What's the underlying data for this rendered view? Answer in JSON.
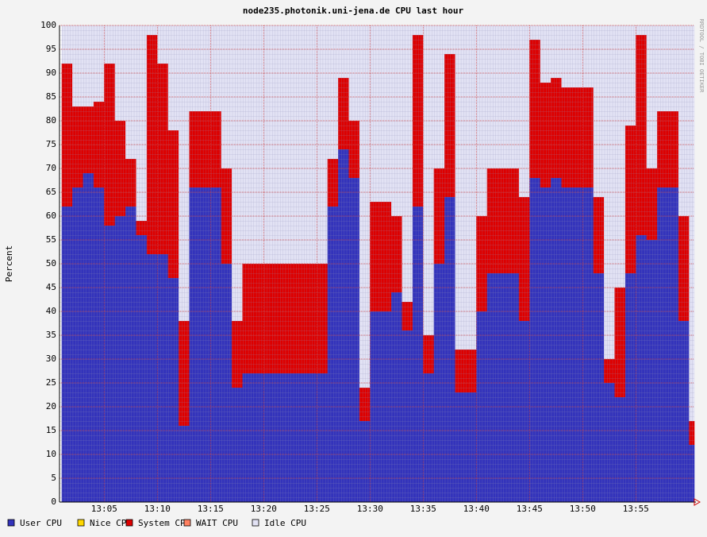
{
  "chart_data": {
    "type": "stacked-step-area",
    "title": "node235.photonik.uni-jena.de CPU last hour",
    "y_label": "Percent",
    "watermark": "RRDTOOL / TOBI OETIKER",
    "x": [
      1,
      2,
      3,
      4,
      5,
      6,
      7,
      8,
      9,
      10,
      11,
      12,
      13,
      14,
      15,
      16,
      17,
      18,
      19,
      20,
      21,
      22,
      23,
      24,
      25,
      26,
      27,
      28,
      29,
      30,
      31,
      32,
      33,
      34,
      35,
      36,
      37,
      38,
      39,
      40,
      41,
      42,
      43,
      44,
      45,
      46,
      47,
      48,
      49,
      50,
      51,
      52,
      53,
      54,
      55,
      56,
      57,
      58,
      59,
      60
    ],
    "xlim": [
      0.8,
      60.5
    ],
    "xticks": [
      {
        "value": 5,
        "label": "13:05"
      },
      {
        "value": 10,
        "label": "13:10"
      },
      {
        "value": 15,
        "label": "13:15"
      },
      {
        "value": 20,
        "label": "13:20"
      },
      {
        "value": 25,
        "label": "13:25"
      },
      {
        "value": 30,
        "label": "13:30"
      },
      {
        "value": 35,
        "label": "13:35"
      },
      {
        "value": 40,
        "label": "13:40"
      },
      {
        "value": 45,
        "label": "13:45"
      },
      {
        "value": 50,
        "label": "13:50"
      },
      {
        "value": 55,
        "label": "13:55"
      }
    ],
    "ylim": [
      0,
      100
    ],
    "yticks": [
      0,
      5,
      10,
      15,
      20,
      25,
      30,
      35,
      40,
      45,
      50,
      55,
      60,
      65,
      70,
      75,
      80,
      85,
      90,
      95,
      100
    ],
    "grid": true,
    "series": [
      {
        "name": "User CPU",
        "color": "#3333bb",
        "values": [
          62,
          66,
          69,
          66,
          58,
          60,
          62,
          56,
          52,
          52,
          47,
          16,
          66,
          66,
          66,
          50,
          24,
          27,
          27,
          27,
          27,
          27,
          27,
          27,
          27,
          62,
          74,
          68,
          17,
          40,
          40,
          44,
          36,
          62,
          27,
          50,
          64,
          23,
          23,
          40,
          48,
          48,
          48,
          38,
          68,
          66,
          68,
          66,
          66,
          66,
          48,
          25,
          22,
          48,
          56,
          55,
          66,
          66,
          38,
          12
        ]
      },
      {
        "name": "Nice CPU",
        "color": "#ffd700",
        "values": [
          0,
          0,
          0,
          0,
          0,
          0,
          0,
          0,
          0,
          0,
          0,
          0,
          0,
          0,
          0,
          0,
          0,
          0,
          0,
          0,
          0,
          0,
          0,
          0,
          0,
          0,
          0,
          0,
          0,
          0,
          0,
          0,
          0,
          0,
          0,
          0,
          0,
          0,
          0,
          0,
          0,
          0,
          0,
          0,
          0,
          0,
          0,
          0,
          0,
          0,
          0,
          0,
          0,
          0,
          0,
          0,
          0,
          0,
          0,
          0
        ]
      },
      {
        "name": "System CPU",
        "color": "#dd0000",
        "values": [
          30,
          17,
          14,
          18,
          34,
          20,
          10,
          3,
          46,
          40,
          31,
          22,
          16,
          16,
          16,
          20,
          14,
          23,
          23,
          23,
          23,
          23,
          23,
          23,
          23,
          10,
          15,
          12,
          7,
          23,
          23,
          16,
          6,
          36,
          8,
          20,
          30,
          9,
          9,
          20,
          22,
          22,
          22,
          26,
          29,
          22,
          21,
          21,
          21,
          21,
          16,
          5,
          23,
          31,
          42,
          15,
          16,
          16,
          22,
          5
        ]
      },
      {
        "name": "WAIT CPU",
        "color": "#ff8060",
        "values": [
          0,
          0,
          0,
          0,
          0,
          0,
          0,
          0,
          0,
          0,
          0,
          0,
          0,
          0,
          0,
          0,
          0,
          0,
          0,
          0,
          0,
          0,
          0,
          0,
          0,
          0,
          0,
          0,
          0,
          0,
          0,
          0,
          0,
          0,
          0,
          0,
          0,
          0,
          0,
          0,
          0,
          0,
          0,
          0,
          0,
          0,
          0,
          0,
          0,
          0,
          0,
          0,
          0,
          0,
          0,
          0,
          0,
          0,
          0,
          0
        ]
      },
      {
        "name": "Idle CPU",
        "color": "#e2e2f4",
        "values": [
          8,
          17,
          17,
          16,
          8,
          20,
          28,
          41,
          2,
          8,
          22,
          62,
          18,
          18,
          18,
          30,
          62,
          50,
          50,
          50,
          50,
          50,
          50,
          50,
          50,
          28,
          11,
          20,
          76,
          37,
          37,
          40,
          58,
          2,
          65,
          30,
          6,
          68,
          68,
          40,
          30,
          30,
          30,
          36,
          3,
          12,
          11,
          13,
          13,
          13,
          36,
          70,
          55,
          21,
          2,
          30,
          18,
          18,
          40,
          83
        ]
      }
    ]
  }
}
